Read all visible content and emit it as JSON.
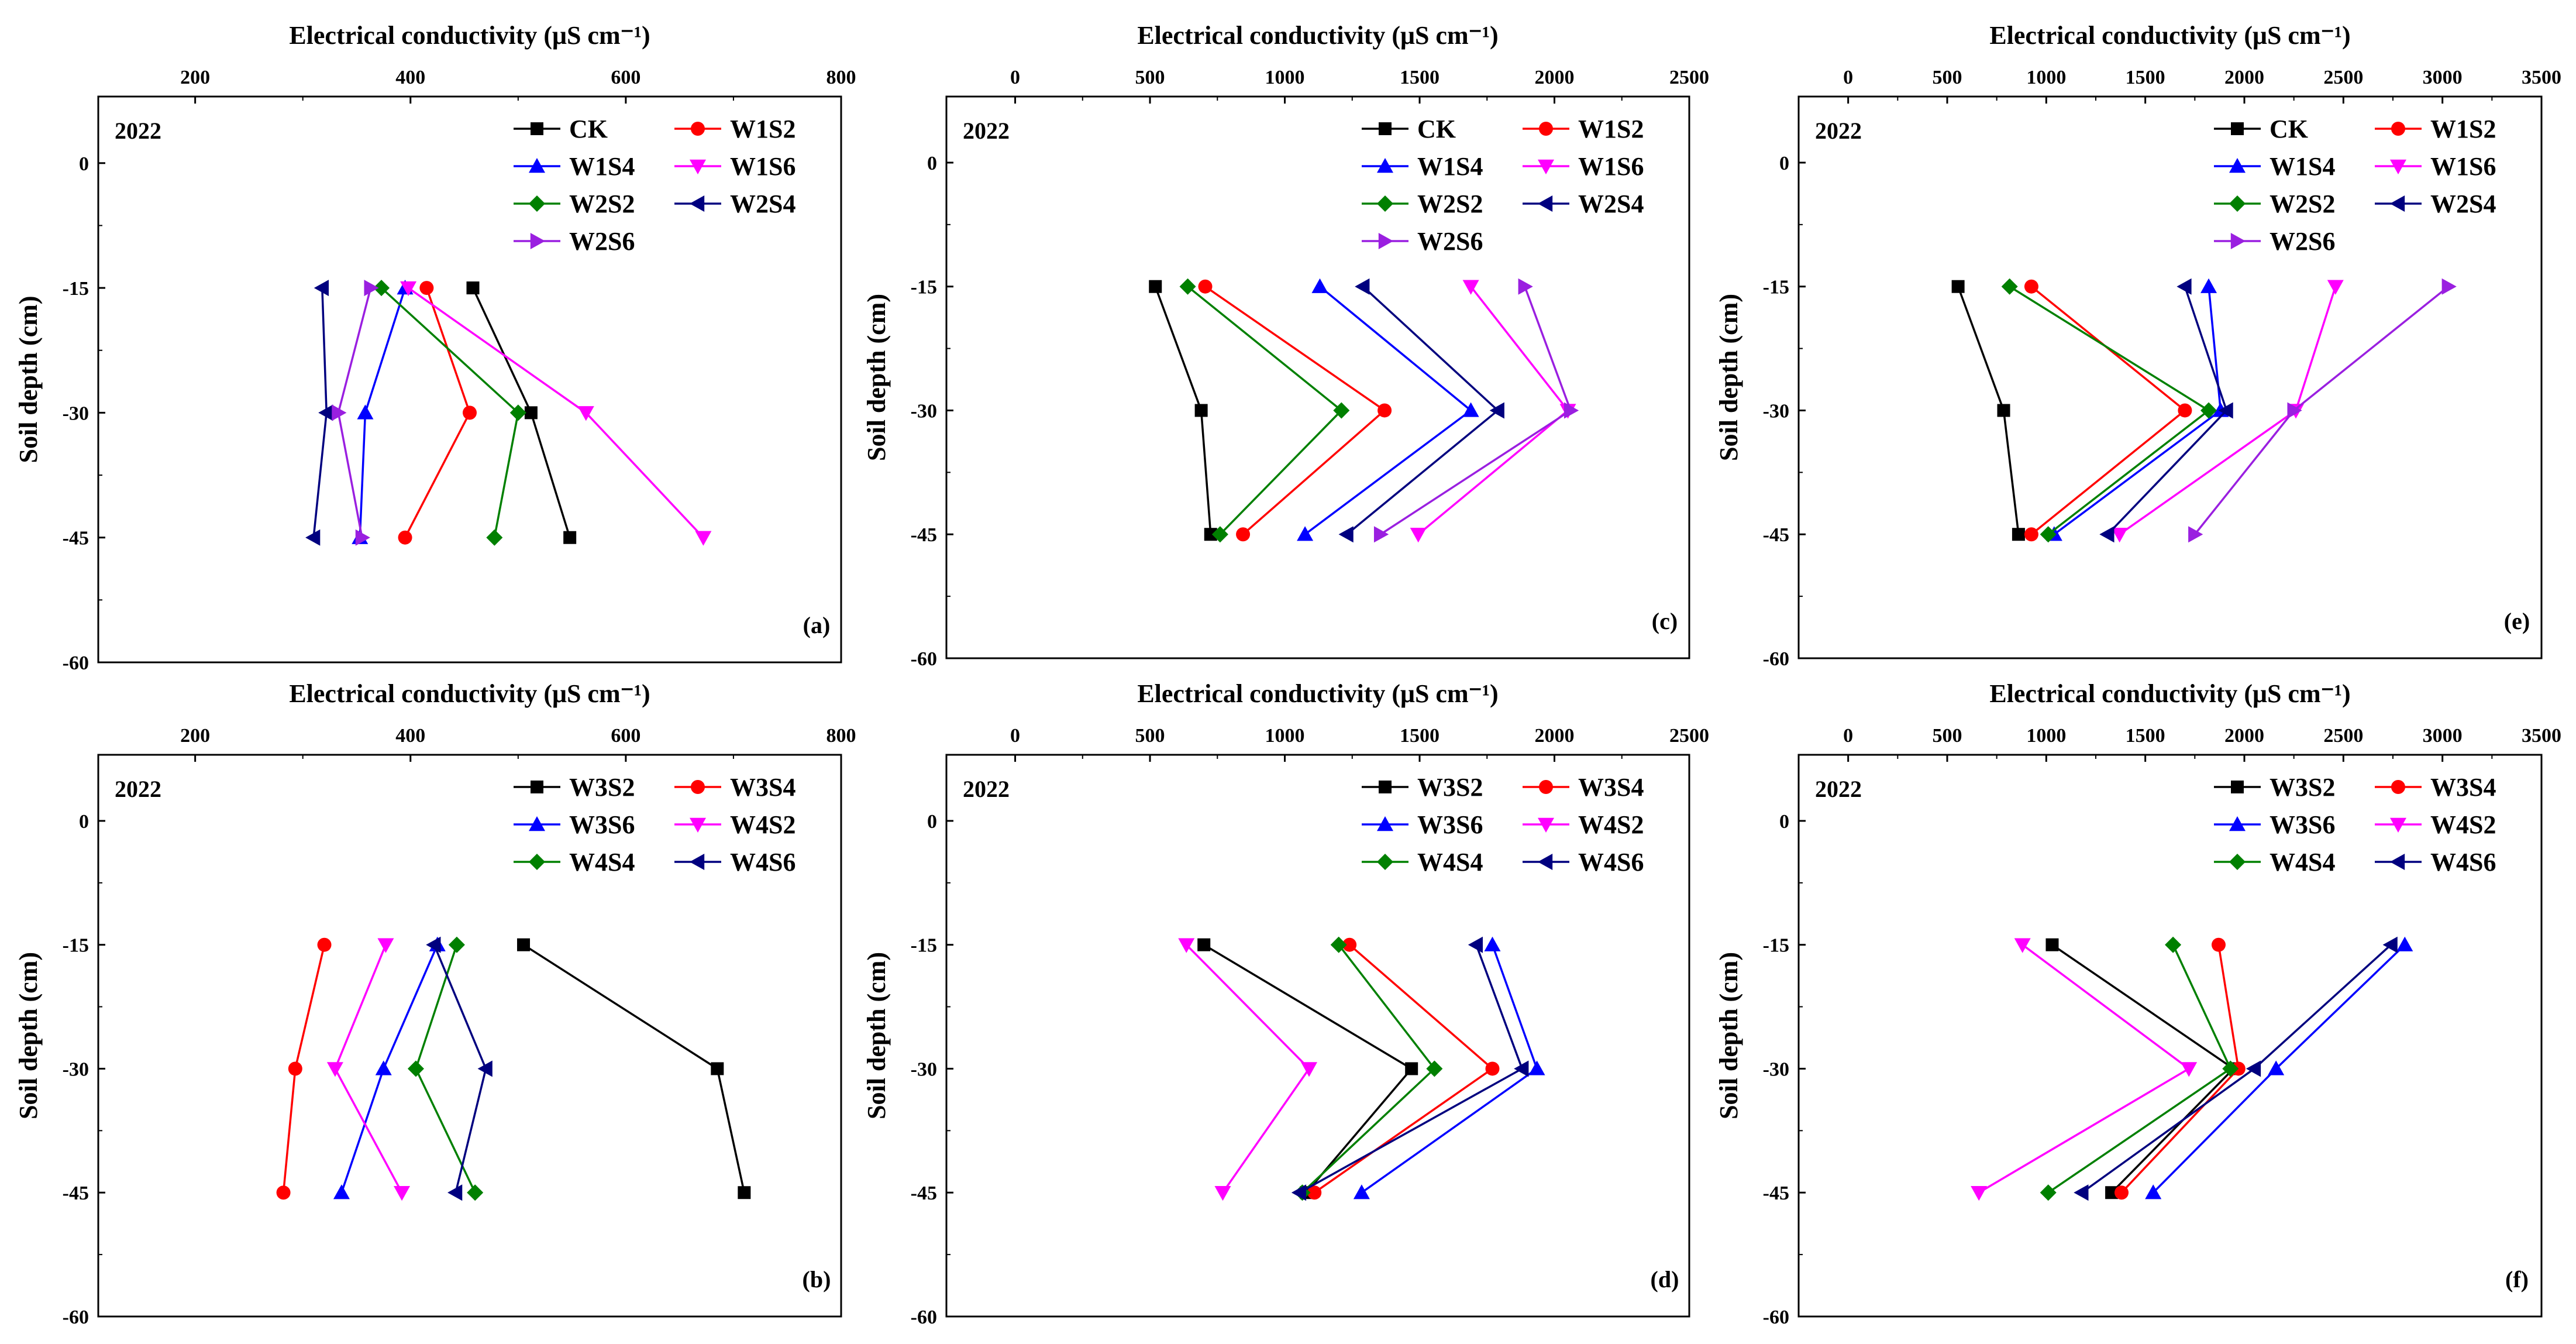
{
  "figure": {
    "year_label": "2022"
  },
  "chart_data": [
    {
      "type": "line",
      "panel_label": "(a)",
      "year": "2022",
      "xlabel": "Electrical conductivity (μS cm⁻¹)",
      "ylabel": "Soil depth (cm)",
      "xlim": [
        110,
        800
      ],
      "xticks": [
        200,
        400,
        600,
        800
      ],
      "xtick_labels": [
        "200",
        "400",
        "600",
        "800"
      ],
      "ylim": [
        -60,
        8
      ],
      "yticks": [
        0,
        -15,
        -30,
        -45,
        -60
      ],
      "ytick_labels": [
        "0",
        "-15",
        "-30",
        "-45",
        "-60"
      ],
      "legend_position": "top-right",
      "depths": [
        -15,
        -30,
        -45
      ],
      "series": [
        {
          "name": "CK",
          "color": "#000000",
          "marker": "square",
          "values": [
            458,
            512,
            548
          ]
        },
        {
          "name": "W1S2",
          "color": "#ff0000",
          "marker": "circle",
          "values": [
            415,
            455,
            395
          ]
        },
        {
          "name": "W1S4",
          "color": "#0000ff",
          "marker": "triangle-up",
          "values": [
            395,
            358,
            353
          ]
        },
        {
          "name": "W1S6",
          "color": "#ff00ff",
          "marker": "triangle-down",
          "values": [
            398,
            563,
            672
          ]
        },
        {
          "name": "W2S2",
          "color": "#008000",
          "marker": "diamond",
          "values": [
            373,
            500,
            478
          ]
        },
        {
          "name": "W2S4",
          "color": "#00007f",
          "marker": "triangle-left",
          "values": [
            318,
            322,
            310
          ]
        },
        {
          "name": "W2S6",
          "color": "#9a1fe0",
          "marker": "triangle-right",
          "values": [
            363,
            333,
            355
          ]
        }
      ]
    },
    {
      "type": "line",
      "panel_label": "(c)",
      "year": "2022",
      "xlabel": "Electrical conductivity (μS cm⁻¹)",
      "ylabel": "Soil depth (cm)",
      "xlim": [
        -255,
        2500
      ],
      "xticks": [
        0,
        500,
        1000,
        1500,
        2000,
        2500
      ],
      "xtick_labels": [
        "0",
        "500",
        "1000",
        "1500",
        "2000",
        "2500"
      ],
      "ylim": [
        -60,
        8
      ],
      "yticks": [
        0,
        -15,
        -30,
        -45,
        -60
      ],
      "ytick_labels": [
        "0",
        "-15",
        "-30",
        "-45",
        "-60"
      ],
      "legend_position": "top-right",
      "depths": [
        -15,
        -30,
        -45
      ],
      "series": [
        {
          "name": "CK",
          "color": "#000000",
          "marker": "square",
          "values": [
            520,
            690,
            725
          ]
        },
        {
          "name": "W1S2",
          "color": "#ff0000",
          "marker": "circle",
          "values": [
            705,
            1370,
            845
          ]
        },
        {
          "name": "W1S4",
          "color": "#0000ff",
          "marker": "triangle-up",
          "values": [
            1130,
            1690,
            1075
          ]
        },
        {
          "name": "W1S6",
          "color": "#ff00ff",
          "marker": "triangle-down",
          "values": [
            1690,
            2050,
            1495
          ]
        },
        {
          "name": "W2S2",
          "color": "#008000",
          "marker": "diamond",
          "values": [
            640,
            1210,
            760
          ]
        },
        {
          "name": "W2S4",
          "color": "#00007f",
          "marker": "triangle-left",
          "values": [
            1290,
            1790,
            1230
          ]
        },
        {
          "name": "W2S6",
          "color": "#9a1fe0",
          "marker": "triangle-right",
          "values": [
            1890,
            2060,
            1355
          ]
        }
      ]
    },
    {
      "type": "line",
      "panel_label": "(e)",
      "year": "2022",
      "xlabel": "Electrical conductivity (μS cm⁻¹)",
      "ylabel": "Soil depth (cm)",
      "xlim": [
        -250,
        3500
      ],
      "xticks": [
        0,
        500,
        1000,
        1500,
        2000,
        2500,
        3000,
        3500
      ],
      "xtick_labels": [
        "0",
        "500",
        "1000",
        "1500",
        "2000",
        "2500",
        "3000",
        "3500"
      ],
      "ylim": [
        -60,
        8
      ],
      "yticks": [
        0,
        -15,
        -30,
        -45,
        -60
      ],
      "ytick_labels": [
        "0",
        "-15",
        "-30",
        "-45",
        "-60"
      ],
      "legend_position": "top-right",
      "depths": [
        -15,
        -30,
        -45
      ],
      "series": [
        {
          "name": "CK",
          "color": "#000000",
          "marker": "square",
          "values": [
            555,
            785,
            860
          ]
        },
        {
          "name": "W1S2",
          "color": "#ff0000",
          "marker": "circle",
          "values": [
            925,
            1700,
            925
          ]
        },
        {
          "name": "W1S4",
          "color": "#0000ff",
          "marker": "triangle-up",
          "values": [
            1820,
            1880,
            1040
          ]
        },
        {
          "name": "W1S6",
          "color": "#ff00ff",
          "marker": "triangle-down",
          "values": [
            2460,
            2260,
            1370
          ]
        },
        {
          "name": "W2S2",
          "color": "#008000",
          "marker": "diamond",
          "values": [
            815,
            1820,
            1010
          ]
        },
        {
          "name": "W2S4",
          "color": "#00007f",
          "marker": "triangle-left",
          "values": [
            1700,
            1910,
            1310
          ]
        },
        {
          "name": "W2S6",
          "color": "#9a1fe0",
          "marker": "triangle-right",
          "values": [
            3030,
            2250,
            1750
          ]
        }
      ]
    },
    {
      "type": "line",
      "panel_label": "(b)",
      "year": "2022",
      "xlabel": "Electrical conductivity (μS cm⁻¹)",
      "ylabel": "Soil depth (cm)",
      "xlim": [
        110,
        800
      ],
      "xticks": [
        200,
        400,
        600,
        800
      ],
      "xtick_labels": [
        "200",
        "400",
        "600",
        "800"
      ],
      "ylim": [
        -60,
        8
      ],
      "yticks": [
        0,
        -15,
        -30,
        -45,
        -60
      ],
      "ytick_labels": [
        "0",
        "-15",
        "-30",
        "-45",
        "-60"
      ],
      "legend_position": "top-right",
      "depths": [
        -15,
        -30,
        -45
      ],
      "series": [
        {
          "name": "W3S2",
          "color": "#000000",
          "marker": "square",
          "values": [
            505,
            685,
            710
          ]
        },
        {
          "name": "W3S4",
          "color": "#ff0000",
          "marker": "circle",
          "values": [
            320,
            293,
            282
          ]
        },
        {
          "name": "W3S6",
          "color": "#0000ff",
          "marker": "triangle-up",
          "values": [
            425,
            375,
            336
          ]
        },
        {
          "name": "W4S2",
          "color": "#ff00ff",
          "marker": "triangle-down",
          "values": [
            377,
            330,
            392
          ]
        },
        {
          "name": "W4S4",
          "color": "#008000",
          "marker": "diamond",
          "values": [
            443,
            405,
            460
          ]
        },
        {
          "name": "W4S6",
          "color": "#00007f",
          "marker": "triangle-left",
          "values": [
            422,
            470,
            442
          ]
        }
      ]
    },
    {
      "type": "line",
      "panel_label": "(d)",
      "year": "2022",
      "xlabel": "Electrical conductivity (μS cm⁻¹)",
      "ylabel": "Soil depth (cm)",
      "xlim": [
        -255,
        2500
      ],
      "xticks": [
        0,
        500,
        1000,
        1500,
        2000,
        2500
      ],
      "xtick_labels": [
        "0",
        "500",
        "1000",
        "1500",
        "2000",
        "2500"
      ],
      "ylim": [
        -60,
        8
      ],
      "yticks": [
        0,
        -15,
        -30,
        -45,
        -60
      ],
      "ytick_labels": [
        "0",
        "-15",
        "-30",
        "-45",
        "-60"
      ],
      "legend_position": "top-right",
      "depths": [
        -15,
        -30,
        -45
      ],
      "series": [
        {
          "name": "W3S2",
          "color": "#000000",
          "marker": "square",
          "values": [
            700,
            1470,
            1080
          ]
        },
        {
          "name": "W3S4",
          "color": "#ff0000",
          "marker": "circle",
          "values": [
            1240,
            1770,
            1110
          ]
        },
        {
          "name": "W3S6",
          "color": "#0000ff",
          "marker": "triangle-up",
          "values": [
            1770,
            1935,
            1285
          ]
        },
        {
          "name": "W4S2",
          "color": "#ff00ff",
          "marker": "triangle-down",
          "values": [
            635,
            1090,
            770
          ]
        },
        {
          "name": "W4S4",
          "color": "#008000",
          "marker": "diamond",
          "values": [
            1200,
            1555,
            1065
          ]
        },
        {
          "name": "W4S6",
          "color": "#00007f",
          "marker": "triangle-left",
          "values": [
            1710,
            1880,
            1055
          ]
        }
      ]
    },
    {
      "type": "line",
      "panel_label": "(f)",
      "year": "2022",
      "xlabel": "Electrical conductivity (μS cm⁻¹)",
      "ylabel": "Soil depth (cm)",
      "xlim": [
        -250,
        3500
      ],
      "xticks": [
        0,
        500,
        1000,
        1500,
        2000,
        2500,
        3000,
        3500
      ],
      "xtick_labels": [
        "0",
        "500",
        "1000",
        "1500",
        "2000",
        "2500",
        "3000",
        "3500"
      ],
      "ylim": [
        -60,
        8
      ],
      "yticks": [
        0,
        -15,
        -30,
        -45,
        -60
      ],
      "ytick_labels": [
        "0",
        "-15",
        "-30",
        "-45",
        "-60"
      ],
      "legend_position": "top-right",
      "depths": [
        -15,
        -30,
        -45
      ],
      "series": [
        {
          "name": "W3S2",
          "color": "#000000",
          "marker": "square",
          "values": [
            1030,
            1945,
            1330
          ]
        },
        {
          "name": "W3S4",
          "color": "#ff0000",
          "marker": "circle",
          "values": [
            1870,
            1970,
            1380
          ]
        },
        {
          "name": "W3S6",
          "color": "#0000ff",
          "marker": "triangle-up",
          "values": [
            2810,
            2160,
            1540
          ]
        },
        {
          "name": "W4S2",
          "color": "#ff00ff",
          "marker": "triangle-down",
          "values": [
            880,
            1720,
            660
          ]
        },
        {
          "name": "W4S4",
          "color": "#008000",
          "marker": "diamond",
          "values": [
            1640,
            1930,
            1010
          ]
        },
        {
          "name": "W4S6",
          "color": "#00007f",
          "marker": "triangle-left",
          "values": [
            2740,
            2050,
            1180
          ]
        }
      ]
    }
  ]
}
